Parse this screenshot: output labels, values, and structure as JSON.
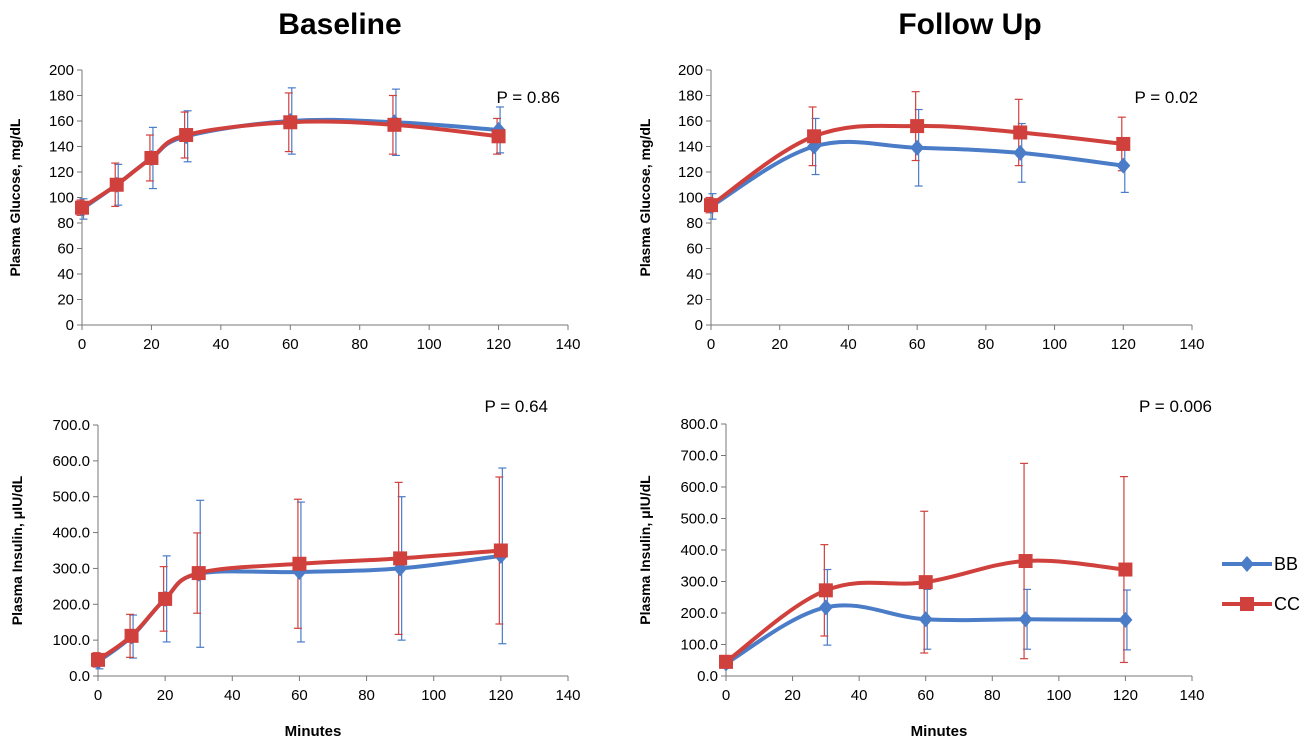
{
  "titles": {
    "left": "Baseline",
    "right": "Follow Up"
  },
  "legend": [
    {
      "name": "BB",
      "color": "#4a7cc7",
      "marker": "diamond"
    },
    {
      "name": "CC",
      "color": "#d0413d",
      "marker": "square"
    }
  ],
  "chart_data": [
    {
      "id": "baseline-glucose",
      "type": "line",
      "ylabel": "Plasma Glucose, mg/dL",
      "xlabel": "",
      "xlim": [
        0,
        140
      ],
      "ylim": [
        0,
        200
      ],
      "xticks": [
        "0",
        "20",
        "40",
        "60",
        "80",
        "100",
        "120",
        "140"
      ],
      "yticks": [
        "0",
        "20",
        "40",
        "60",
        "80",
        "100",
        "120",
        "140",
        "160",
        "180",
        "200"
      ],
      "annotation": "P = 0.86",
      "series": [
        {
          "name": "BB",
          "x": [
            0,
            10,
            20,
            30,
            60,
            90,
            120
          ],
          "y": [
            91,
            110,
            131,
            148,
            160,
            159,
            153
          ],
          "err": [
            8,
            16,
            24,
            20,
            26,
            26,
            18
          ]
        },
        {
          "name": "CC",
          "x": [
            0,
            10,
            20,
            30,
            60,
            90,
            120
          ],
          "y": [
            92,
            110,
            131,
            149,
            159,
            157,
            148
          ],
          "err": [
            6,
            17,
            18,
            18,
            23,
            23,
            14
          ]
        }
      ]
    },
    {
      "id": "followup-glucose",
      "type": "line",
      "ylabel": "Plasma Glucose, mg/dL",
      "xlabel": "",
      "xlim": [
        0,
        140
      ],
      "ylim": [
        0,
        200
      ],
      "xticks": [
        "0",
        "20",
        "40",
        "60",
        "80",
        "100",
        "120",
        "140"
      ],
      "yticks": [
        "0",
        "20",
        "40",
        "60",
        "80",
        "100",
        "120",
        "140",
        "160",
        "180",
        "200"
      ],
      "annotation": "P = 0.02",
      "series": [
        {
          "name": "BB",
          "x": [
            0,
            30,
            60,
            90,
            120
          ],
          "y": [
            93,
            140,
            139,
            135,
            125
          ],
          "err": [
            10,
            22,
            30,
            23,
            21
          ]
        },
        {
          "name": "CC",
          "x": [
            0,
            30,
            60,
            90,
            120
          ],
          "y": [
            94,
            148,
            156,
            151,
            142
          ],
          "err": [
            6,
            23,
            27,
            26,
            21
          ]
        }
      ]
    },
    {
      "id": "baseline-insulin",
      "type": "line",
      "ylabel": "Plasma Insulin, μIU/dL",
      "xlabel": "Minutes",
      "xlim": [
        0,
        140
      ],
      "ylim": [
        0,
        700
      ],
      "xticks": [
        "0",
        "20",
        "40",
        "60",
        "80",
        "100",
        "120",
        "140"
      ],
      "yticks": [
        "0.0",
        "100.0",
        "200.0",
        "300.0",
        "400.0",
        "500.0",
        "600.0",
        "700.0"
      ],
      "annotation": "P = 0.64",
      "series": [
        {
          "name": "BB",
          "x": [
            0,
            10,
            20,
            30,
            60,
            90,
            120
          ],
          "y": [
            40,
            110,
            215,
            285,
            290,
            300,
            335
          ],
          "err": [
            20,
            60,
            120,
            205,
            195,
            200,
            245
          ]
        },
        {
          "name": "CC",
          "x": [
            0,
            10,
            20,
            30,
            60,
            90,
            120
          ],
          "y": [
            45,
            112,
            215,
            287,
            313,
            328,
            350
          ],
          "err": [
            20,
            60,
            90,
            112,
            180,
            212,
            205
          ]
        }
      ]
    },
    {
      "id": "followup-insulin",
      "type": "line",
      "ylabel": "Plasma Insulin, μIU/dL",
      "xlabel": "Minutes",
      "xlim": [
        0,
        140
      ],
      "ylim": [
        0,
        800
      ],
      "xticks": [
        "0",
        "20",
        "40",
        "60",
        "80",
        "100",
        "120",
        "140"
      ],
      "yticks": [
        "0.0",
        "100.0",
        "200.0",
        "300.0",
        "400.0",
        "500.0",
        "600.0",
        "700.0",
        "800.0"
      ],
      "annotation": "P = 0.006",
      "series": [
        {
          "name": "BB",
          "x": [
            0,
            30,
            60,
            90,
            120
          ],
          "y": [
            40,
            218,
            180,
            180,
            178
          ],
          "err": [
            15,
            120,
            95,
            95,
            95
          ]
        },
        {
          "name": "CC",
          "x": [
            0,
            30,
            60,
            90,
            120
          ],
          "y": [
            45,
            272,
            298,
            365,
            338
          ],
          "err": [
            20,
            145,
            225,
            310,
            295
          ]
        }
      ]
    }
  ]
}
